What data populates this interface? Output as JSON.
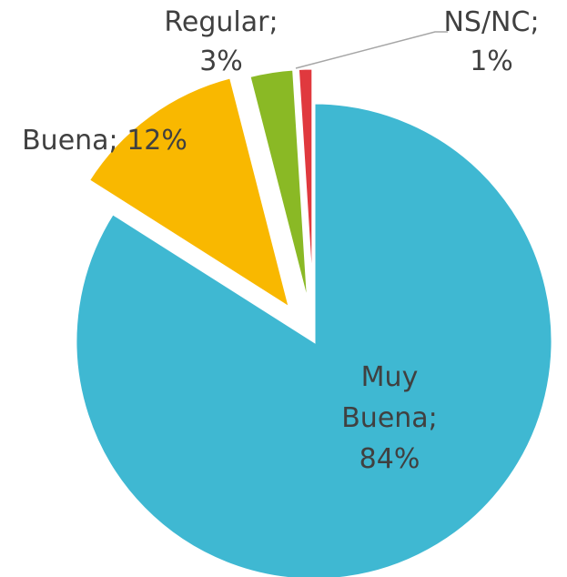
{
  "chart_data": {
    "type": "pie",
    "categories": [
      "Muy Buena",
      "Buena",
      "Regular",
      "NS/NC"
    ],
    "values": [
      84,
      12,
      3,
      1
    ],
    "value_labels": [
      "84%",
      "12%",
      "3%",
      "1%"
    ],
    "label_separator": ";",
    "colors": [
      "#3fb8d2",
      "#f9b800",
      "#8ab925",
      "#e0393e"
    ]
  }
}
